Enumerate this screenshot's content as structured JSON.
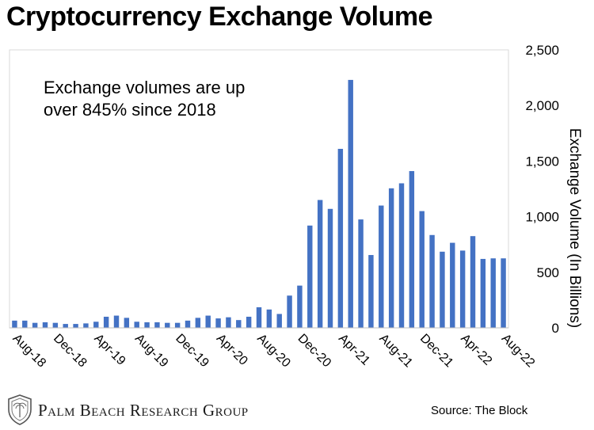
{
  "chart_data": {
    "type": "bar",
    "title": "Cryptocurrency Exchange Volume",
    "annotation": [
      "Exchange volumes are up",
      "over 845% since 2018"
    ],
    "ylabel": "Exchange Volume (In Billions)",
    "xlabel": "",
    "ylim": [
      0,
      2500
    ],
    "yticks": [
      0,
      500,
      1000,
      1500,
      2000,
      2500
    ],
    "ytick_labels": [
      "0",
      "500",
      "1,000",
      "1,500",
      "2,000",
      "2,500"
    ],
    "y_axis_side": "right",
    "grid": false,
    "bar_color": "#4472C4",
    "xtick_labels": [
      "Aug-18",
      "Dec-18",
      "Apr-19",
      "Aug-19",
      "Dec-19",
      "Apr-20",
      "Aug-20",
      "Dec-20",
      "Apr-21",
      "Aug-21",
      "Dec-21",
      "Apr-22",
      "Aug-22"
    ],
    "values": [
      65,
      65,
      45,
      50,
      45,
      35,
      35,
      40,
      55,
      100,
      110,
      90,
      55,
      50,
      50,
      45,
      45,
      65,
      90,
      110,
      85,
      95,
      70,
      100,
      185,
      165,
      125,
      290,
      380,
      920,
      1150,
      1070,
      1610,
      2230,
      975,
      655,
      1100,
      1255,
      1300,
      1410,
      1050,
      835,
      685,
      765,
      695,
      825,
      620,
      625,
      625
    ]
  },
  "footer": {
    "brand": "Palm Beach Research Group",
    "source": "Source: The Block"
  }
}
